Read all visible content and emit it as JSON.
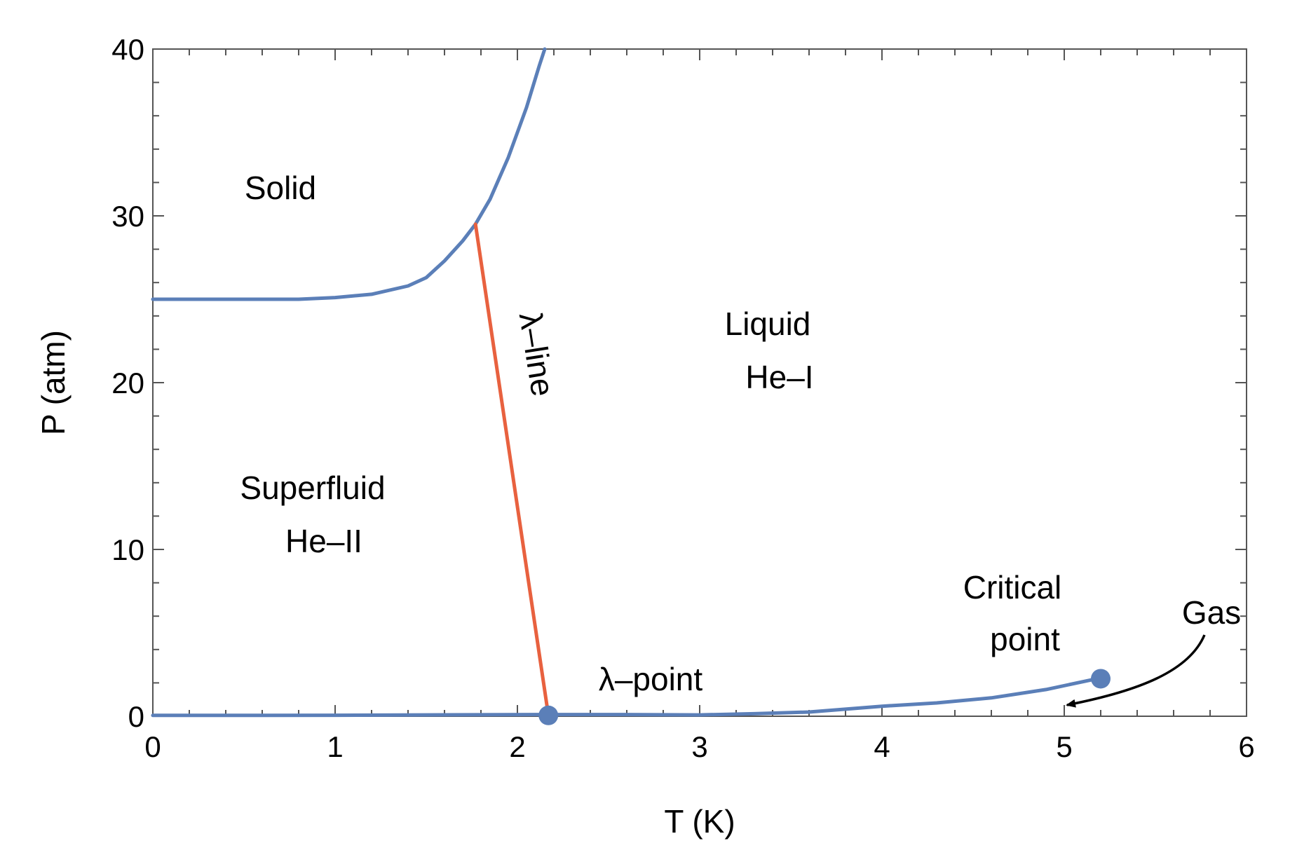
{
  "chart_data": {
    "type": "line",
    "xlabel": "T (K)",
    "ylabel": "P (atm)",
    "xlim": [
      0,
      6
    ],
    "ylim": [
      0,
      40
    ],
    "x_ticks": [
      0,
      1,
      2,
      3,
      4,
      5,
      6
    ],
    "y_ticks": [
      0,
      10,
      20,
      30,
      40
    ],
    "x_tick_labels": [
      "0",
      "1",
      "2",
      "3",
      "4",
      "5",
      "6"
    ],
    "y_tick_labels": [
      "0",
      "10",
      "20",
      "30",
      "40"
    ],
    "grid": false,
    "series": [
      {
        "color": "#5b7fb8",
        "points": [
          [
            0,
            25.0
          ],
          [
            0.5,
            25.0
          ],
          [
            0.8,
            25.0
          ],
          [
            1.0,
            25.1
          ],
          [
            1.2,
            25.3
          ],
          [
            1.4,
            25.8
          ],
          [
            1.5,
            26.3
          ],
          [
            1.6,
            27.3
          ],
          [
            1.7,
            28.5
          ],
          [
            1.77,
            29.5
          ],
          [
            1.85,
            31.0
          ],
          [
            1.95,
            33.5
          ],
          [
            2.05,
            36.5
          ],
          [
            2.12,
            39.0
          ],
          [
            2.15,
            40.0
          ]
        ]
      },
      {
        "color": "#e8613f",
        "points": [
          [
            1.77,
            29.5
          ],
          [
            2.17,
            0.05
          ]
        ]
      },
      {
        "color": "#5b7fb8",
        "points": [
          [
            0,
            0.05
          ],
          [
            0.5,
            0.05
          ],
          [
            1.0,
            0.06
          ],
          [
            1.5,
            0.08
          ],
          [
            2.17,
            0.1
          ],
          [
            2.5,
            0.1
          ],
          [
            3.0,
            0.08
          ],
          [
            3.3,
            0.15
          ],
          [
            3.6,
            0.25
          ],
          [
            4.0,
            0.6
          ],
          [
            4.3,
            0.8
          ],
          [
            4.6,
            1.1
          ],
          [
            4.9,
            1.6
          ],
          [
            5.2,
            2.3
          ]
        ]
      }
    ],
    "points": [
      {
        "name": "λ-point",
        "x": 2.17,
        "y": 0.05,
        "color": "#5b7fb8"
      },
      {
        "name": "Critical point",
        "x": 5.2,
        "y": 2.25,
        "color": "#5b7fb8"
      }
    ],
    "annotations": {
      "solid": "Solid",
      "liquid_line1": "Liquid",
      "liquid_line2": "He–I",
      "superfluid_line1": "Superfluid",
      "superfluid_line2": "He–II",
      "lambda_line": "λ–line",
      "lambda_point": "λ–point",
      "critical_line1": "Critical",
      "critical_line2": "point",
      "gas": "Gas"
    }
  }
}
